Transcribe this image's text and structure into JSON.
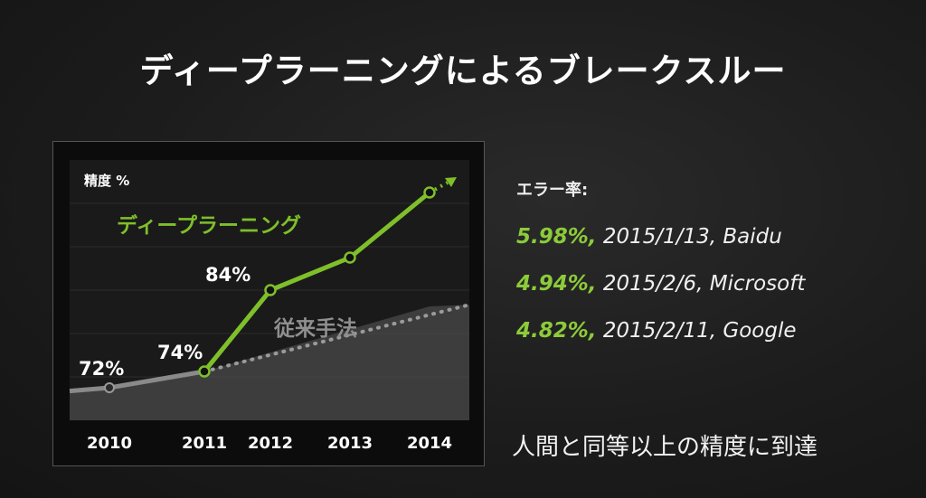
{
  "title": "ディープラーニングによるブレークスルー",
  "chart_data": {
    "type": "line",
    "ylabel": "精度 %",
    "categories": [
      "2010",
      "2011",
      "2012",
      "2013",
      "2014"
    ],
    "series": [
      {
        "name": "ディープラーニング",
        "color": "#7fbf2a",
        "points": [
          [
            2011,
            74
          ],
          [
            2012,
            84
          ],
          [
            2013,
            88
          ],
          [
            2014,
            96
          ]
        ]
      },
      {
        "name": "従来手法",
        "color": "#8a8a8a",
        "points": [
          [
            2010,
            72
          ],
          [
            2011,
            74
          ],
          [
            2014,
            82
          ]
        ]
      }
    ],
    "data_labels": [
      {
        "x": 2010,
        "y": 72,
        "text": "72%"
      },
      {
        "x": 2011,
        "y": 74,
        "text": "74%"
      },
      {
        "x": 2012,
        "y": 84,
        "text": "84%"
      }
    ],
    "ylim": [
      68,
      100
    ]
  },
  "error_rates": {
    "heading": "エラー率:",
    "rows": [
      {
        "pct": "5.98%,",
        "rest": " 2015/1/13, Baidu"
      },
      {
        "pct": "4.94%,",
        "rest": " 2015/2/6, Microsoft"
      },
      {
        "pct": "4.82%,",
        "rest": " 2015/2/11, Google"
      }
    ]
  },
  "conclusion": "人間と同等以上の精度に到達"
}
